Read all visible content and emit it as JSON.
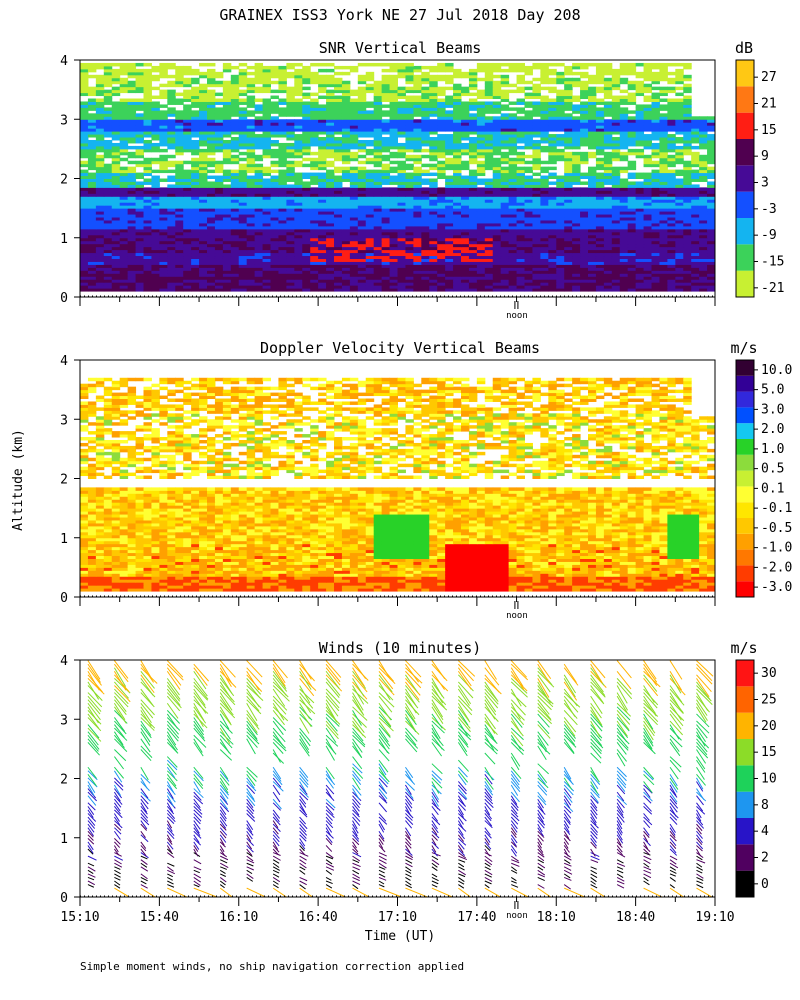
{
  "figure_title": "GRAINEX ISS3 York NE  27 Jul 2018 Day 208",
  "ylabel": "Altitude (km)",
  "xlabel": "Time (UT)",
  "noon_label": "noon",
  "footnote": "Simple moment winds, no ship navigation correction applied",
  "colors": {
    "snr": [
      "#c8f032",
      "#3cd25a",
      "#14b4f0",
      "#1450ff",
      "#460a96",
      "#500050",
      "#ff1e14",
      "#ff7814",
      "#ffc814"
    ],
    "doppler": [
      "#ff0000",
      "#ff3c00",
      "#ff7800",
      "#ffa000",
      "#ffc800",
      "#ffe600",
      "#ffff32",
      "#c8f032",
      "#8cdc3c",
      "#28d228",
      "#14c8f0",
      "#0050ff",
      "#3228dc",
      "#320096",
      "#320032"
    ],
    "winds": [
      "#000000",
      "#500060",
      "#2814c8",
      "#1e96f0",
      "#1ed25a",
      "#8cdc28",
      "#ffb400",
      "#ff6400",
      "#ff1414"
    ]
  },
  "chart_data": [
    {
      "type": "heatmap",
      "title": "SNR Vertical Beams",
      "units": "dB",
      "xlim": [
        15.1667,
        19.1667
      ],
      "ylim": [
        0,
        4
      ],
      "yticks": [
        "0",
        "1",
        "2",
        "3",
        "4"
      ],
      "colorbar_labels": [
        "27",
        "21",
        "15",
        "9",
        "3",
        "-3",
        "-9",
        "-15",
        "-21"
      ],
      "bands": [
        {
          "alt": [
            0.1,
            0.3
          ],
          "dB": 6
        },
        {
          "alt": [
            0.3,
            0.55
          ],
          "dB": 7
        },
        {
          "alt": [
            0.55,
            0.75
          ],
          "dB": 2
        },
        {
          "alt": [
            0.75,
            1.0
          ],
          "dB": 5
        },
        {
          "alt": [
            1.0,
            1.15
          ],
          "dB": 4
        },
        {
          "alt": [
            1.15,
            1.5
          ],
          "dB": -2
        },
        {
          "alt": [
            1.5,
            1.7
          ],
          "dB": -8
        },
        {
          "alt": [
            1.7,
            1.85
          ],
          "dB": 4
        },
        {
          "alt": [
            1.85,
            2.1
          ],
          "dB": -12
        },
        {
          "alt": [
            2.1,
            2.5
          ],
          "dB": -17
        },
        {
          "alt": [
            2.5,
            2.8
          ],
          "dB": -11
        },
        {
          "alt": [
            2.8,
            3.0
          ],
          "dB": -3
        },
        {
          "alt": [
            3.0,
            3.3
          ],
          "dB": -14
        },
        {
          "alt": [
            3.3,
            3.7
          ],
          "dB": -19
        },
        {
          "alt": [
            3.7,
            3.95
          ],
          "dB": -21
        }
      ],
      "note": "Red echo feature near 0.5-1.0 km around 16:40-17:40"
    },
    {
      "type": "heatmap",
      "title": "Doppler Velocity Vertical Beams",
      "units": "m/s",
      "xlim": [
        15.1667,
        19.1667
      ],
      "ylim": [
        0,
        4
      ],
      "yticks": [
        "0",
        "1",
        "2",
        "3",
        "4"
      ],
      "colorbar_labels": [
        "10.0",
        "5.0",
        "3.0",
        "2.0",
        "1.0",
        "0.5",
        "0.1",
        "-0.1",
        "-0.5",
        "-1.0",
        "-2.0",
        "-3.0"
      ],
      "bands": [
        {
          "alt": [
            0.1,
            0.35
          ],
          "ms": -1.2
        },
        {
          "alt": [
            0.35,
            0.9
          ],
          "ms": -0.4
        },
        {
          "alt": [
            0.9,
            1.85
          ],
          "ms": -0.2
        },
        {
          "alt": [
            2.0,
            3.1
          ],
          "ms": 0.0
        },
        {
          "alt": [
            3.1,
            3.7
          ],
          "ms": -0.3
        }
      ],
      "note": "Updraft patches (1-2 m/s) near 17:10 and 18:55 around 1 km"
    },
    {
      "type": "scatter",
      "title": "Winds (10 minutes)",
      "units": "m/s",
      "xlim": [
        15.1667,
        19.1667
      ],
      "ylim": [
        0,
        4
      ],
      "yticks": [
        "0",
        "1",
        "2",
        "3",
        "4"
      ],
      "xticks": [
        "15:10",
        "15:40",
        "16:10",
        "16:40",
        "17:10",
        "17:40",
        "18:10",
        "18:40",
        "19:10"
      ],
      "colorbar_labels": [
        "30",
        "25",
        "20",
        "15",
        "10",
        "8",
        "4",
        "2",
        "0"
      ],
      "profiles_every_minutes": 10,
      "speed_profile": [
        {
          "alt": 0.2,
          "ms": 1
        },
        {
          "alt": 0.8,
          "ms": 3
        },
        {
          "alt": 1.5,
          "ms": 6
        },
        {
          "alt": 2.0,
          "ms": 9
        },
        {
          "alt": 2.5,
          "ms": 12
        },
        {
          "alt": 3.0,
          "ms": 15
        },
        {
          "alt": 3.5,
          "ms": 18
        },
        {
          "alt": 4.0,
          "ms": 22
        }
      ]
    }
  ]
}
